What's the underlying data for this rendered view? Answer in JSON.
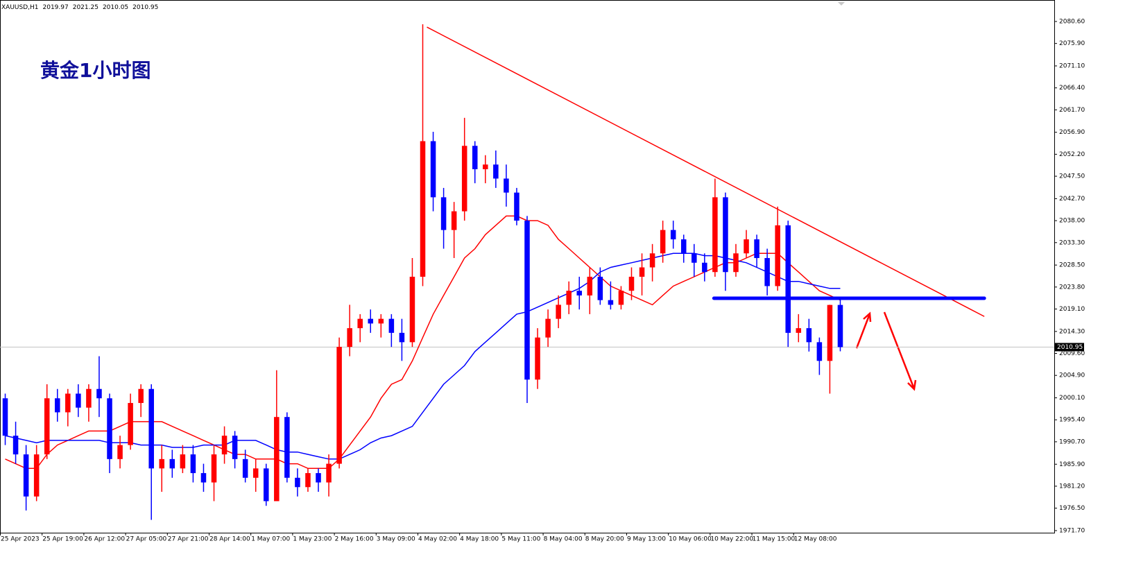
{
  "chart_data": {
    "type": "candlestick",
    "symbol": "XAUUSD,H1",
    "annotation": "黄金1小时图",
    "up_color": "#ff0000",
    "down_color": "#0000ff",
    "open": [
      2000,
      1992,
      1988,
      1979,
      1988,
      2000,
      1997,
      2001,
      1998,
      2002,
      2000,
      1987,
      1990,
      1999,
      2002,
      1985,
      1987,
      1985,
      1988,
      1984,
      1982,
      1988,
      1992,
      1987,
      1983,
      1985,
      1978,
      1996,
      1983,
      1981,
      1984,
      1982,
      1986,
      2011,
      2015,
      2017,
      2016,
      2017,
      2014,
      2012,
      2026,
      2055,
      2043,
      2036,
      2040,
      2054,
      2049,
      2050,
      2047,
      2044,
      2038,
      2004,
      2013,
      2017,
      2020,
      2023,
      2022,
      2026,
      2021,
      2020,
      2023,
      2026,
      2028,
      2031,
      2036,
      2034,
      2031,
      2029,
      2027,
      2043,
      2027,
      2031,
      2034,
      2030,
      2024,
      2037,
      2014,
      2015,
      2012,
      2008,
      2019.97
    ],
    "high": [
      2001,
      1995,
      1990,
      1990,
      2003,
      2002,
      2002,
      2003,
      2003,
      2009,
      2001,
      1992,
      2001,
      2003,
      2003,
      1990,
      1989,
      1990,
      1990,
      1986,
      1990,
      1994,
      1993,
      1989,
      1987,
      1986,
      2006,
      1997,
      1985,
      1985,
      1985,
      1988,
      2013,
      2020,
      2018,
      2019,
      2018,
      2018,
      2017,
      2030,
      2080,
      2057,
      2045,
      2042,
      2060,
      2055,
      2052,
      2053,
      2050,
      2045,
      2039,
      2015,
      2019,
      2022,
      2025,
      2026,
      2028,
      2028,
      2025,
      2024,
      2028,
      2031,
      2033,
      2038,
      2038,
      2035,
      2033,
      2031,
      2047,
      2044,
      2033,
      2036,
      2035,
      2032,
      2041,
      2038,
      2018,
      2017,
      2013,
      2020,
      2021.25
    ],
    "low": [
      1990,
      1986,
      1976,
      1978,
      1987,
      1995,
      1994,
      1996,
      1995,
      1996,
      1984,
      1985,
      1989,
      1996,
      1974,
      1980,
      1983,
      1984,
      1982,
      1980,
      1978,
      1986,
      1985,
      1982,
      1980,
      1977,
      1978,
      1982,
      1979,
      1980,
      1980,
      1979,
      1985,
      2009,
      2012,
      2014,
      2013,
      2011,
      2008,
      2011,
      2024,
      2040,
      2032,
      2030,
      2038,
      2046,
      2046,
      2045,
      2041,
      2037,
      1999,
      2002,
      2011,
      2015,
      2018,
      2019,
      2018,
      2020,
      2019,
      2019,
      2021,
      2022,
      2025,
      2029,
      2032,
      2029,
      2026,
      2025,
      2026,
      2023,
      2026,
      2030,
      2028,
      2022,
      2023,
      2011,
      2012,
      2010,
      2005,
      2001,
      2010.05
    ],
    "close": [
      1992,
      1988,
      1979,
      1988,
      2000,
      1997,
      2001,
      1998,
      2002,
      2000,
      1987,
      1990,
      1999,
      2002,
      1985,
      1987,
      1985,
      1988,
      1984,
      1982,
      1988,
      1992,
      1987,
      1983,
      1985,
      1978,
      1996,
      1983,
      1981,
      1984,
      1982,
      1986,
      2011,
      2015,
      2017,
      2016,
      2017,
      2014,
      2012,
      2026,
      2055,
      2043,
      2036,
      2040,
      2054,
      2049,
      2050,
      2047,
      2044,
      2038,
      2004,
      2013,
      2017,
      2020,
      2023,
      2022,
      2026,
      2021,
      2020,
      2023,
      2026,
      2028,
      2031,
      2036,
      2034,
      2031,
      2029,
      2027,
      2043,
      2027,
      2031,
      2034,
      2030,
      2024,
      2037,
      2014,
      2015,
      2012,
      2008,
      2019.97,
      2010.95
    ],
    "ma": [
      {
        "color": "#ff0000",
        "values": [
          1987,
          1986,
          1985,
          1985,
          1988,
          1990,
          1991,
          1992,
          1993,
          1993,
          1993,
          1994,
          1995,
          1995,
          1995,
          1995,
          1994,
          1993,
          1992,
          1991,
          1990,
          1989,
          1988,
          1988,
          1987,
          1987,
          1987,
          1986,
          1986,
          1985,
          1985,
          1985,
          1987,
          1990,
          1993,
          1996,
          2000,
          2003,
          2004,
          2008,
          2013,
          2018,
          2022,
          2026,
          2030,
          2032,
          2035,
          2037,
          2039,
          2039,
          2038,
          2038,
          2037,
          2034,
          2032,
          2030,
          2028,
          2026,
          2024,
          2023,
          2022,
          2021,
          2020,
          2022,
          2024,
          2025,
          2026,
          2027,
          2028,
          2029,
          2029,
          2030,
          2031,
          2031,
          2031,
          2029,
          2027,
          2025,
          2023,
          2022,
          2021
        ]
      },
      {
        "color": "#0000ff",
        "values": [
          1992,
          1991.5,
          1991,
          1990.5,
          1991,
          1991,
          1991,
          1991,
          1991,
          1991,
          1990.5,
          1990.5,
          1990.5,
          1990,
          1990,
          1990,
          1989.5,
          1989.5,
          1989.5,
          1990,
          1990,
          1990,
          1991,
          1991,
          1991,
          1990,
          1989,
          1988.5,
          1988.5,
          1988,
          1987.5,
          1987,
          1987,
          1988,
          1989,
          1990.5,
          1991.5,
          1992,
          1993,
          1994,
          1997,
          2000,
          2003,
          2005,
          2007,
          2010,
          2012,
          2014,
          2016,
          2018,
          2018.5,
          2019.5,
          2020.5,
          2021.5,
          2022.5,
          2023.5,
          2025,
          2027,
          2028,
          2028.5,
          2029,
          2029.5,
          2030,
          2030.5,
          2031,
          2031,
          2031,
          2030.5,
          2030.5,
          2030,
          2029.5,
          2029,
          2028,
          2027,
          2026,
          2025,
          2025,
          2024.5,
          2024,
          2023.5,
          2023.5
        ]
      }
    ],
    "trendline": {
      "color": "#ff0000",
      "x": [
        40.9,
        94.3
      ],
      "y": [
        2079.4,
        2017.5
      ]
    },
    "support": {
      "color": "#0000ff",
      "x": [
        68.4,
        94.3
      ],
      "y": [
        2021.4,
        2021.4
      ]
    },
    "xlim": [
      0,
      101
    ],
    "xticks": [
      {
        "value": 0,
        "label": "25 Apr 2023"
      },
      {
        "value": 4,
        "label": "25 Apr 19:00"
      },
      {
        "value": 8,
        "label": "26 Apr 12:00"
      },
      {
        "value": 12,
        "label": "27 Apr 05:00"
      },
      {
        "value": 16,
        "label": "27 Apr 21:00"
      },
      {
        "value": 20,
        "label": "28 Apr 14:00"
      },
      {
        "value": 24,
        "label": "1 May 07:00"
      },
      {
        "value": 28,
        "label": "1 May 23:00"
      },
      {
        "value": 32,
        "label": "2 May 16:00"
      },
      {
        "value": 36,
        "label": "3 May 09:00"
      },
      {
        "value": 40,
        "label": "4 May 02:00"
      },
      {
        "value": 44,
        "label": "4 May 18:00"
      },
      {
        "value": 48,
        "label": "5 May 11:00"
      },
      {
        "value": 52,
        "label": "8 May 04:00"
      },
      {
        "value": 56,
        "label": "8 May 20:00"
      },
      {
        "value": 60,
        "label": "9 May 13:00"
      },
      {
        "value": 64,
        "label": "10 May 06:00"
      },
      {
        "value": 68,
        "label": "10 May 22:00"
      },
      {
        "value": 72,
        "label": "11 May 15:00"
      },
      {
        "value": 76,
        "label": "12 May 08:00"
      }
    ],
    "ylim": [
      1971.25,
      2084.75
    ],
    "yticks": [
      {
        "value": 1971.7,
        "label": "1971.70"
      },
      {
        "value": 1976.5,
        "label": "1976.50"
      },
      {
        "value": 1981.2,
        "label": "1981.20"
      },
      {
        "value": 1985.9,
        "label": "1985.90"
      },
      {
        "value": 1990.7,
        "label": "1990.70"
      },
      {
        "value": 1995.4,
        "label": "1995.40"
      },
      {
        "value": 2000.1,
        "label": "2000.10"
      },
      {
        "value": 2004.9,
        "label": "2004.90"
      },
      {
        "value": 2009.6,
        "label": "2009.60"
      },
      {
        "value": 2014.3,
        "label": "2014.30"
      },
      {
        "value": 2019.1,
        "label": "2019.10"
      },
      {
        "value": 2023.8,
        "label": "2023.80"
      },
      {
        "value": 2028.5,
        "label": "2028.50"
      },
      {
        "value": 2033.3,
        "label": "2033.30"
      },
      {
        "value": 2038,
        "label": "2038.00"
      },
      {
        "value": 2042.7,
        "label": "2042.70"
      },
      {
        "value": 2047.5,
        "label": "2047.50"
      },
      {
        "value": 2052.2,
        "label": "2052.20"
      },
      {
        "value": 2056.9,
        "label": "2056.90"
      },
      {
        "value": 2061.7,
        "label": "2061.70"
      },
      {
        "value": 2066.4,
        "label": "2066.40"
      },
      {
        "value": 2071.1,
        "label": "2071.10"
      },
      {
        "value": 2075.9,
        "label": "2075.90"
      },
      {
        "value": 2080.6,
        "label": "2080.60"
      }
    ]
  }
}
